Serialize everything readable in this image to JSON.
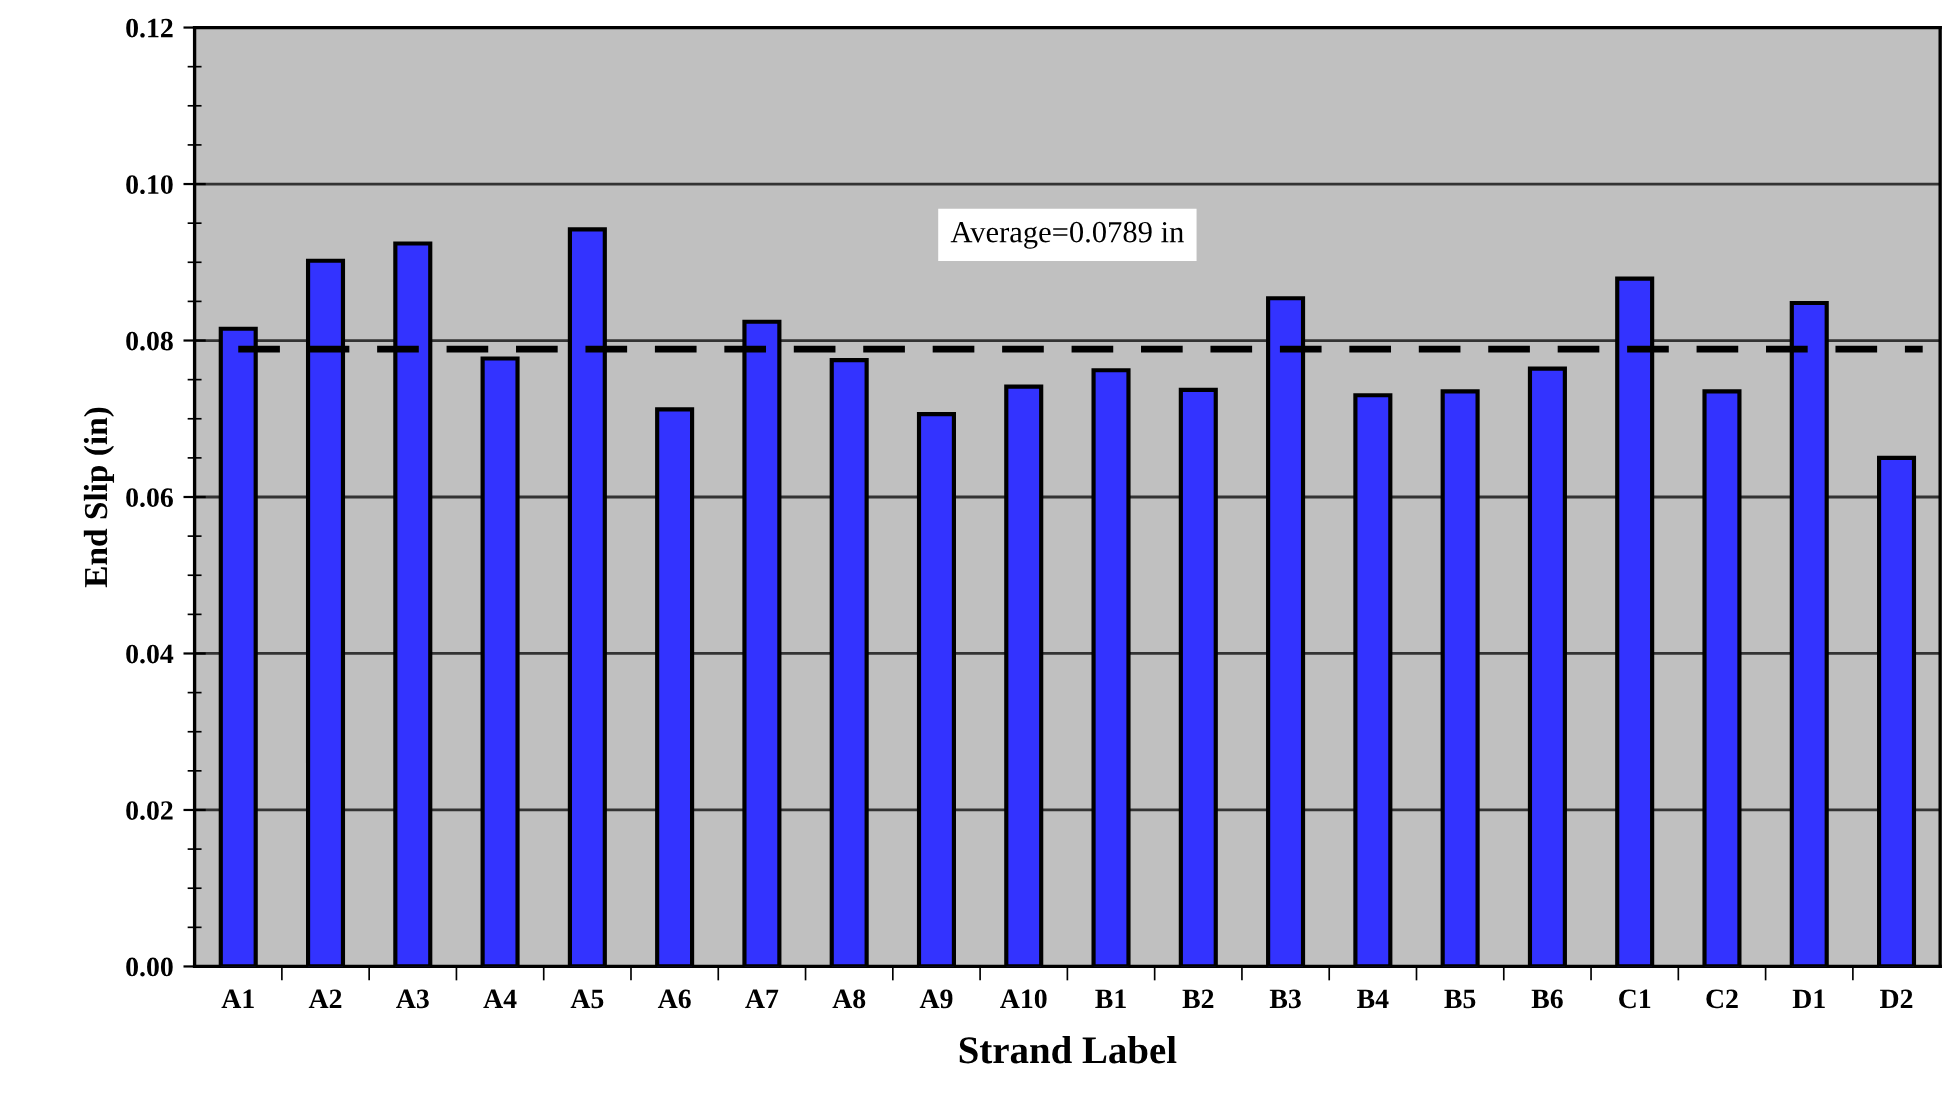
{
  "chart_data": {
    "type": "bar",
    "xlabel": "Strand Label",
    "ylabel": "End Slip (in)",
    "categories": [
      "A1",
      "A2",
      "A3",
      "A4",
      "A5",
      "A6",
      "A7",
      "A8",
      "A9",
      "A10",
      "B1",
      "B2",
      "B3",
      "B4",
      "B5",
      "B6",
      "C1",
      "C2",
      "D1",
      "D2"
    ],
    "values": [
      0.0815,
      0.0902,
      0.0924,
      0.0777,
      0.0942,
      0.0712,
      0.0824,
      0.0775,
      0.0706,
      0.0741,
      0.0762,
      0.0737,
      0.0854,
      0.073,
      0.0735,
      0.0764,
      0.0879,
      0.0735,
      0.0848,
      0.065
    ],
    "color": "#3333ff",
    "ylim": [
      0,
      0.12
    ],
    "yticks": [
      {
        "value": 0,
        "label": "0.00"
      },
      {
        "value": 0.02,
        "label": "0.02"
      },
      {
        "value": 0.04,
        "label": "0.04"
      },
      {
        "value": 0.06,
        "label": "0.06"
      },
      {
        "value": 0.08,
        "label": "0.08"
      },
      {
        "value": 0.1,
        "label": "0.10"
      },
      {
        "value": 0.12,
        "label": "0.12"
      }
    ],
    "grid": "y",
    "ref_lines": [
      {
        "axis": "y",
        "value": 0.0789,
        "label": "Average=0.0789 in",
        "color": "#000000",
        "line_style": "dashed"
      }
    ]
  }
}
